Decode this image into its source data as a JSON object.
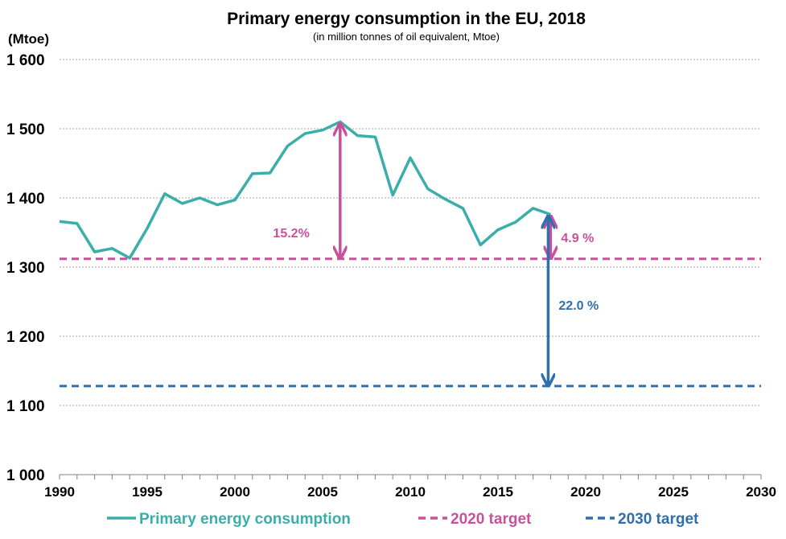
{
  "chart_data": {
    "type": "line",
    "title": "Primary energy consumption in the EU, 2018",
    "subtitle": "(in million tonnes of oil equivalent, Mtoe)",
    "ylabel": "(Mtoe)",
    "xlim": [
      1990,
      2030
    ],
    "ylim": [
      1000,
      1600
    ],
    "x_ticks": [
      1990,
      1995,
      2000,
      2005,
      2010,
      2015,
      2020,
      2025,
      2030
    ],
    "x_tick_labels": [
      "1990",
      "1995",
      "2000",
      "2005",
      "2010",
      "2015",
      "2020",
      "2025",
      "2030"
    ],
    "y_ticks": [
      1000,
      1100,
      1200,
      1300,
      1400,
      1500,
      1600
    ],
    "y_tick_labels": [
      "1 000",
      "1 100",
      "1 200",
      "1 300",
      "1 400",
      "1 500",
      "1 600"
    ],
    "grid": true,
    "series": [
      {
        "name": "Primary energy consumption",
        "color": "#3AAEA9",
        "style": "solid",
        "x": [
          1990,
          1991,
          1992,
          1993,
          1994,
          1995,
          1996,
          1997,
          1998,
          1999,
          2000,
          2001,
          2002,
          2003,
          2004,
          2005,
          2006,
          2007,
          2008,
          2009,
          2010,
          2011,
          2012,
          2013,
          2014,
          2015,
          2016,
          2017,
          2018
        ],
        "values": [
          1366,
          1363,
          1322,
          1327,
          1313,
          1356,
          1406,
          1392,
          1400,
          1390,
          1397,
          1435,
          1436,
          1475,
          1493,
          1498,
          1510,
          1490,
          1488,
          1404,
          1458,
          1413,
          1398,
          1385,
          1332,
          1354,
          1365,
          1385,
          1376
        ]
      },
      {
        "name": "2020 target",
        "color": "#C9509A",
        "style": "dashed",
        "x": [
          1990,
          2030
        ],
        "values": [
          1312,
          1312
        ]
      },
      {
        "name": "2030 target",
        "color": "#2E6FAE",
        "style": "dashed",
        "x": [
          1990,
          2030
        ],
        "values": [
          1128,
          1128
        ]
      }
    ],
    "annotations": [
      {
        "text": "15.2%",
        "color": "#C9509A",
        "year": 2006,
        "from": 1510,
        "to": 1312
      },
      {
        "text": "4.9 %",
        "color": "#C9509A",
        "year": 2018,
        "from": 1376,
        "to": 1312
      },
      {
        "text": "22.0 %",
        "color": "#2E6FAE",
        "year": 2018,
        "from": 1376,
        "to": 1128
      }
    ],
    "legend": {
      "position": "bottom",
      "items": [
        "Primary energy consumption",
        "2020 target",
        "2030 target"
      ]
    }
  }
}
